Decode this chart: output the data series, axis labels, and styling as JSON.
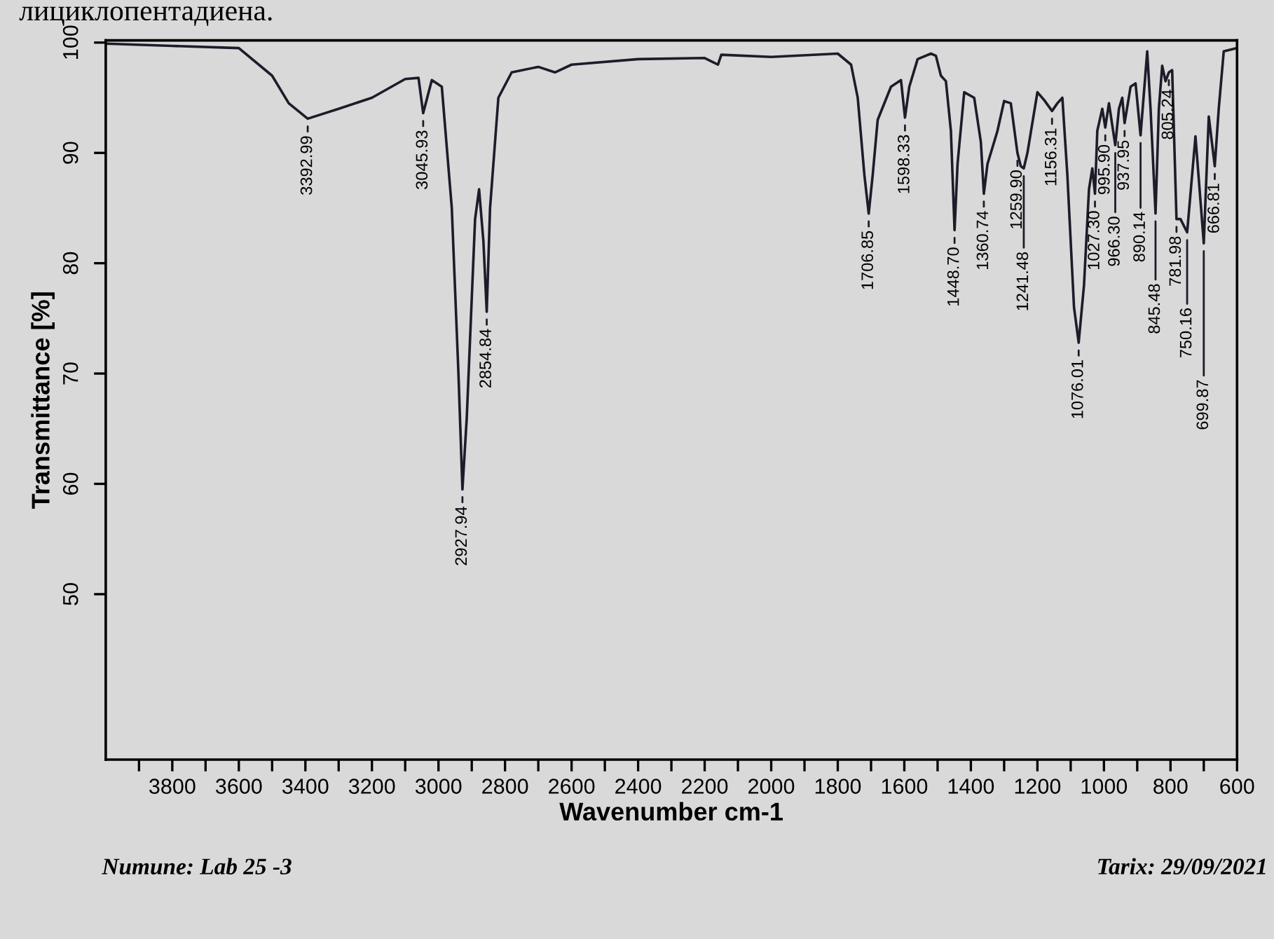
{
  "chart_data": {
    "type": "line",
    "xlabel": "Wavenumber cm-1",
    "ylabel": "Transmittance [%]",
    "xlim": [
      4000,
      600
    ],
    "ylim": [
      35,
      100.2
    ],
    "xticks": [
      {
        "value": 3900,
        "label": null
      },
      3800,
      {
        "value": 3700,
        "label": null
      },
      3600,
      {
        "value": 3500,
        "label": null
      },
      3400,
      {
        "value": 3300,
        "label": null
      },
      3200,
      {
        "value": 3100,
        "label": null
      },
      3000,
      {
        "value": 2900,
        "label": null
      },
      2800,
      {
        "value": 2700,
        "label": null
      },
      2600,
      {
        "value": 2500,
        "label": null
      },
      2400,
      {
        "value": 2300,
        "label": null
      },
      2200,
      {
        "value": 2100,
        "label": null
      },
      2000,
      {
        "value": 1900,
        "label": null
      },
      1800,
      {
        "value": 1700,
        "label": null
      },
      1600,
      {
        "value": 1500,
        "label": null
      },
      1400,
      {
        "value": 1300,
        "label": null
      },
      1200,
      {
        "value": 1100,
        "label": null
      },
      1000,
      {
        "value": 900,
        "label": null
      },
      800,
      {
        "value": 700,
        "label": null
      },
      600
    ],
    "yticks": [
      50,
      60,
      70,
      80,
      90,
      100
    ],
    "grid": false,
    "marker": "none",
    "line_style": "solid",
    "series": [
      {
        "color": "#1c1c2a",
        "x": [
          4000,
          3800,
          3600,
          3500,
          3450,
          3393,
          3300,
          3200,
          3100,
          3060,
          3046,
          3020,
          2990,
          2960,
          2940,
          2928,
          2915,
          2890,
          2878,
          2865,
          2855,
          2845,
          2820,
          2780,
          2700,
          2650,
          2600,
          2400,
          2200,
          2160,
          2150,
          2000,
          1800,
          1760,
          1740,
          1720,
          1707,
          1695,
          1680,
          1640,
          1610,
          1598,
          1585,
          1560,
          1520,
          1505,
          1490,
          1475,
          1460,
          1449,
          1440,
          1420,
          1390,
          1370,
          1361,
          1350,
          1320,
          1300,
          1280,
          1260,
          1250,
          1241,
          1230,
          1200,
          1180,
          1156,
          1140,
          1125,
          1110,
          1090,
          1076,
          1060,
          1045,
          1035,
          1027,
          1020,
          1005,
          996,
          985,
          966,
          955,
          945,
          938,
          920,
          905,
          890,
          870,
          860,
          845,
          835,
          825,
          815,
          805,
          795,
          782,
          770,
          750,
          725,
          700,
          685,
          667,
          655,
          640,
          600
        ],
        "values": [
          99.9,
          99.7,
          99.5,
          97,
          94.5,
          93.1,
          94,
          95,
          96.7,
          96.8,
          93.6,
          96.6,
          96,
          85,
          70,
          59.5,
          66,
          84,
          86.7,
          82,
          75.6,
          85,
          95,
          97.3,
          97.8,
          97.3,
          98,
          98.5,
          98.6,
          98,
          98.9,
          98.7,
          99,
          98,
          95,
          88,
          84.5,
          88,
          93,
          96,
          96.6,
          93.2,
          96,
          98.5,
          99,
          98.8,
          97,
          96.5,
          92,
          83,
          89,
          95.5,
          95,
          91,
          86.3,
          89,
          92,
          94.7,
          94.5,
          90,
          88.8,
          88.6,
          90,
          95.5,
          94.8,
          93.8,
          94.5,
          95,
          88,
          76,
          72.8,
          78,
          86.7,
          88.6,
          86.3,
          92,
          94,
          92.3,
          94.5,
          90.7,
          94,
          95,
          92.7,
          96,
          96.3,
          91.6,
          99.2,
          94,
          84.5,
          94,
          97.9,
          96.5,
          97.3,
          97.5,
          84,
          84,
          82.8,
          91.5,
          81.8,
          93.3,
          88.8,
          94,
          99.2,
          99.5
        ]
      }
    ],
    "annotations": [
      {
        "text": "3392.99",
        "x": 3393,
        "y": 93.1
      },
      {
        "text": "3045.93",
        "x": 3046,
        "y": 93.6
      },
      {
        "text": "2927.94",
        "x": 2928,
        "y": 59.5
      },
      {
        "text": "2854.84",
        "x": 2855,
        "y": 75.6
      },
      {
        "text": "1706.85",
        "x": 1707,
        "y": 84.5
      },
      {
        "text": "1598.33",
        "x": 1598,
        "y": 93.2
      },
      {
        "text": "1448.70",
        "x": 1449,
        "y": 83
      },
      {
        "text": "1360.74",
        "x": 1361,
        "y": 86.3
      },
      {
        "text": "1259.90",
        "x": 1260,
        "y": 90
      },
      {
        "text": "1241.48",
        "x": 1241,
        "y": 88.6
      },
      {
        "text": "1156.31",
        "x": 1156,
        "y": 93.8
      },
      {
        "text": "1076.01",
        "x": 1076,
        "y": 72.8
      },
      {
        "text": "1027.30",
        "x": 1027,
        "y": 86.3
      },
      {
        "text": "995.90",
        "x": 996,
        "y": 92.3
      },
      {
        "text": "966.30",
        "x": 966,
        "y": 90.7
      },
      {
        "text": "937.95",
        "x": 938,
        "y": 92.7
      },
      {
        "text": "890.14",
        "x": 890,
        "y": 91.6
      },
      {
        "text": "845.48",
        "x": 845,
        "y": 84.5
      },
      {
        "text": "805.24",
        "x": 805,
        "y": 97.3
      },
      {
        "text": "781.98",
        "x": 782,
        "y": 84
      },
      {
        "text": "750.16",
        "x": 750,
        "y": 82.8
      },
      {
        "text": "699.87",
        "x": 700,
        "y": 81.8
      },
      {
        "text": "666.81",
        "x": 667,
        "y": 88.8
      },
      "лициклопентадиена.",
      "Numune: Lab 25 -3",
      "Tarix: 29/09/2021"
    ]
  }
}
